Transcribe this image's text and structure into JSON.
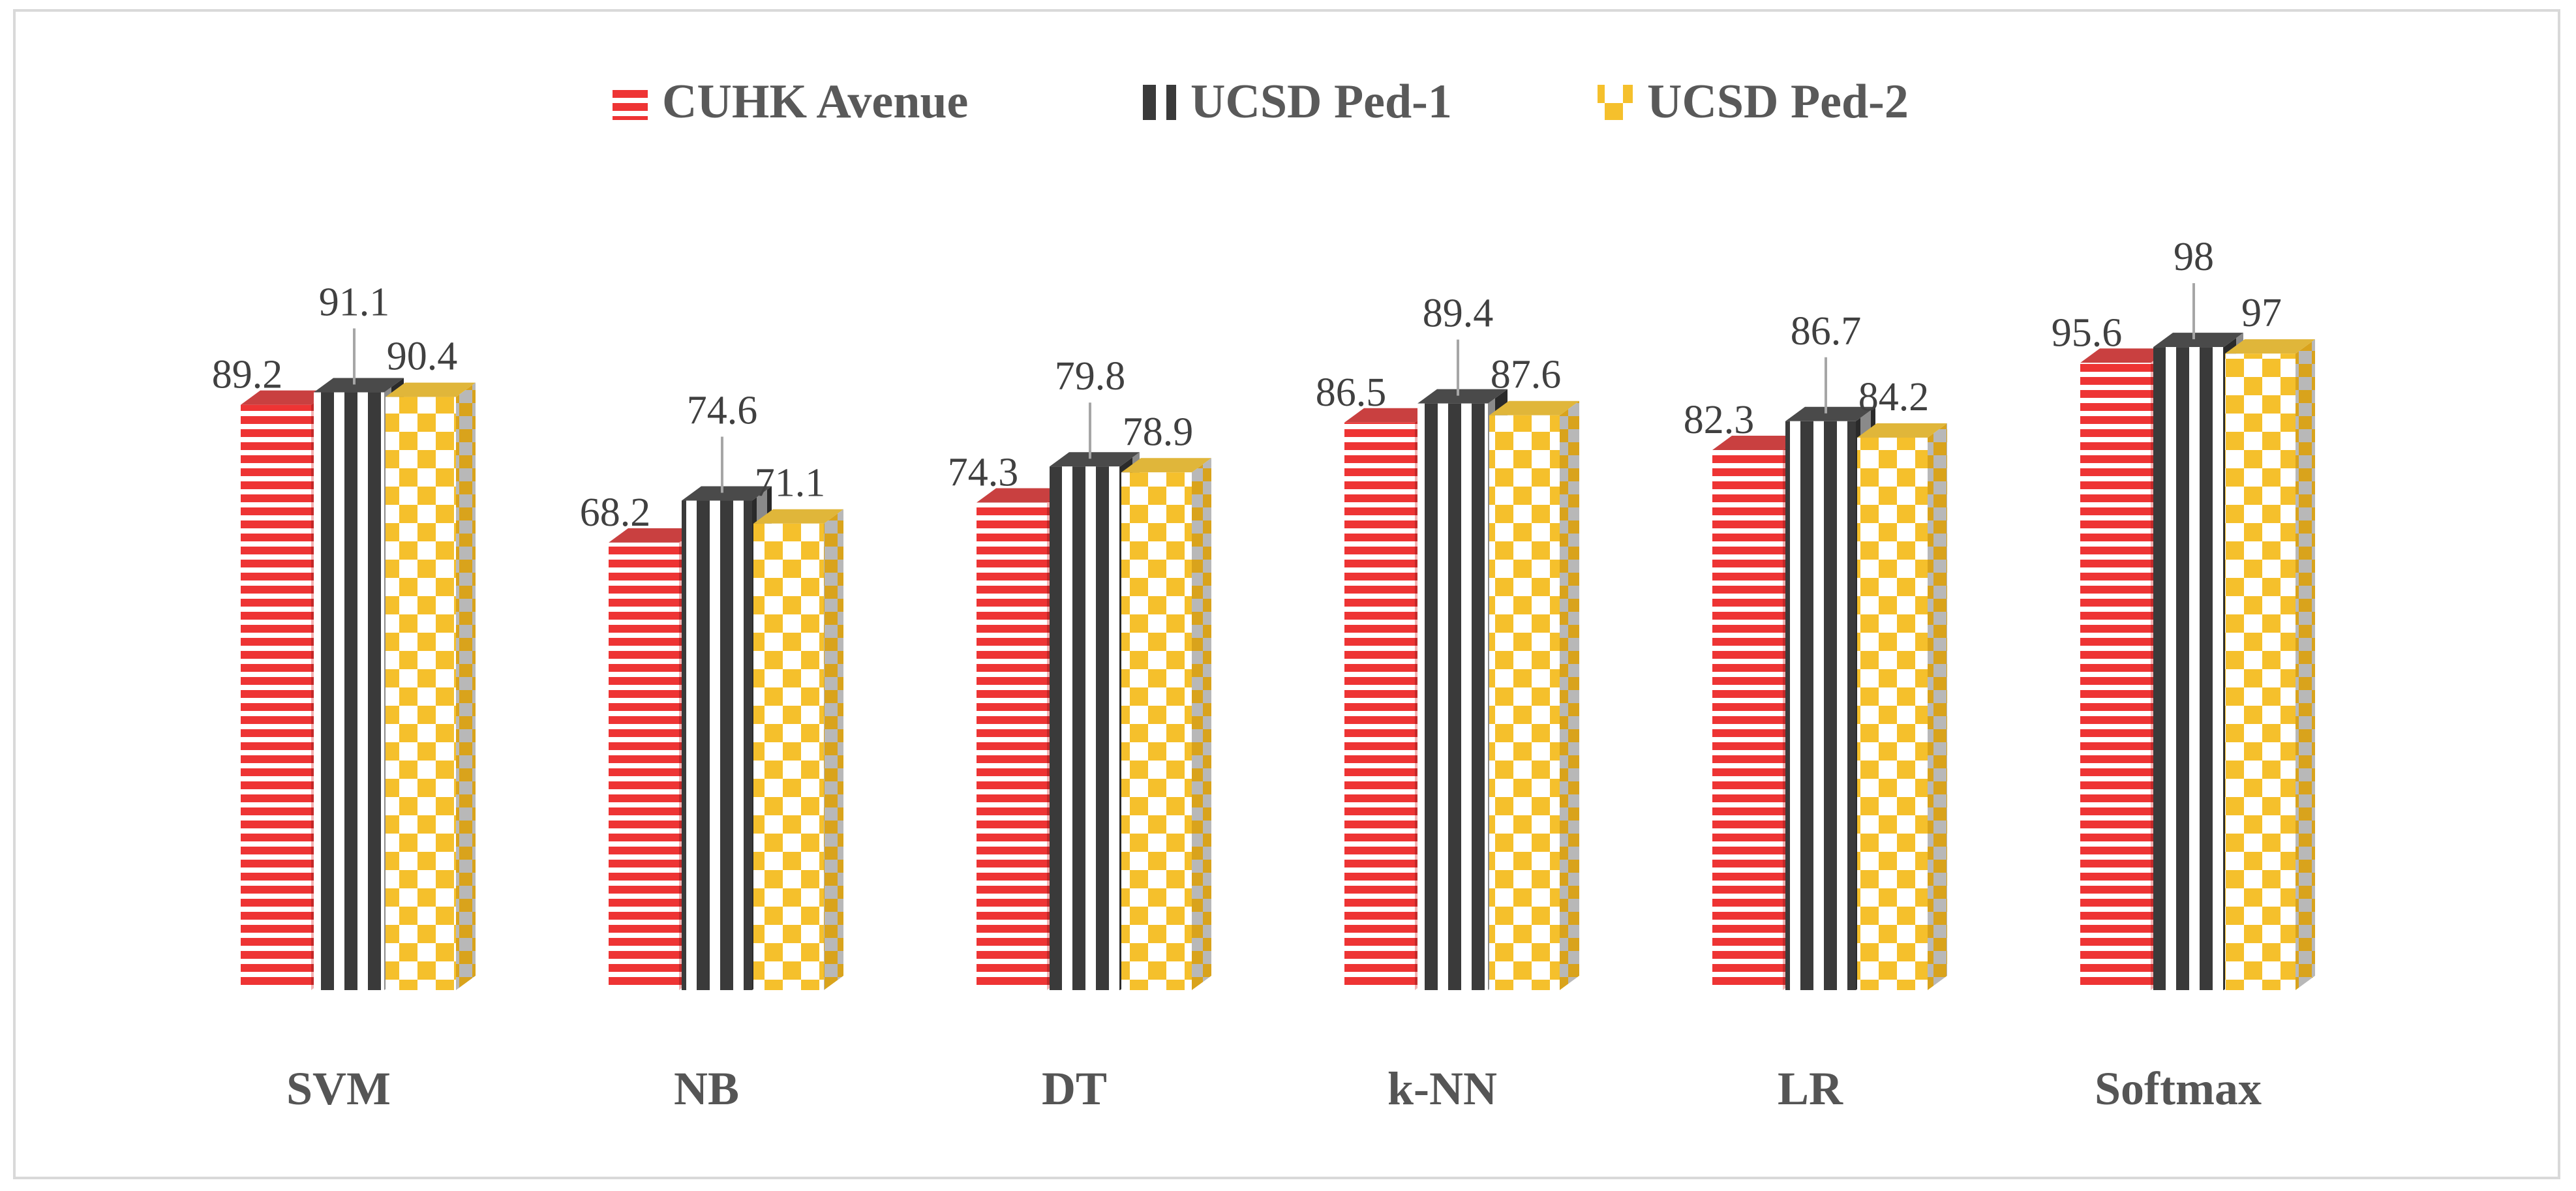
{
  "chart_data": {
    "type": "bar",
    "title": "",
    "xlabel": "",
    "ylabel": "",
    "ylim": [
      0,
      100
    ],
    "grid": false,
    "legend_position": "top-center",
    "categories": [
      "SVM",
      "NB",
      "DT",
      "k-NN",
      "LR",
      "Softmax"
    ],
    "series": [
      {
        "name": "CUHK Avenue",
        "values": [
          89.2,
          68.2,
          74.3,
          86.5,
          82.3,
          95.6
        ]
      },
      {
        "name": "UCSD Ped-1",
        "values": [
          91.1,
          74.6,
          79.8,
          89.4,
          86.7,
          98
        ]
      },
      {
        "name": "UCSD Ped-2",
        "values": [
          90.4,
          71.1,
          78.9,
          87.6,
          84.2,
          97
        ]
      }
    ],
    "value_labels": [
      [
        "89.2",
        "68.2",
        "74.3",
        "86.5",
        "82.3",
        "95.6"
      ],
      [
        "91.1",
        "74.6",
        "79.8",
        "89.4",
        "86.7",
        "98"
      ],
      [
        "90.4",
        "71.1",
        "78.9",
        "87.6",
        "84.2",
        "97"
      ]
    ]
  },
  "colors": {
    "series": [
      "#ee3434",
      "#3a3a3a",
      "#f5c02c"
    ],
    "stripe_light": "#ffffff",
    "category_text": "#555555",
    "legend_text": "#595959",
    "value_text": "#404040",
    "leader_line": "#a6a6a6",
    "border": "#d9d9d9"
  }
}
